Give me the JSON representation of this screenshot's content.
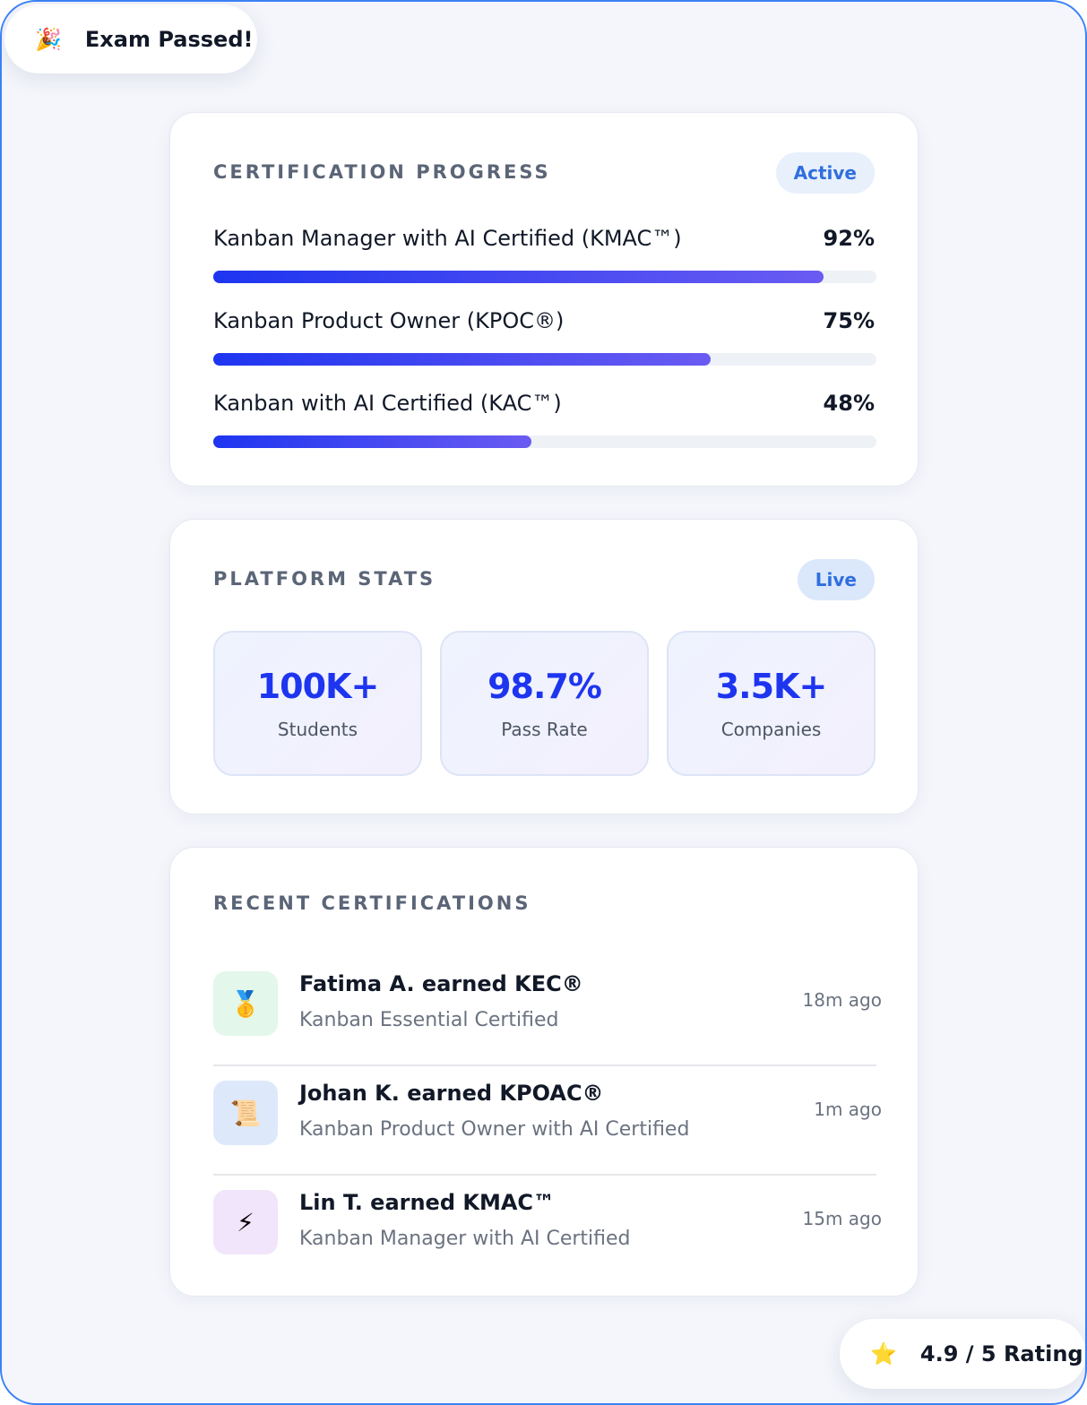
{
  "toast": {
    "icon": "🎉",
    "text": "Exam Passed!"
  },
  "progress": {
    "title": "CERTIFICATION PROGRESS",
    "badge": "Active",
    "xlim": [
      0,
      100
    ],
    "items": [
      {
        "label": "Kanban Manager with AI Certified (KMAC™)",
        "value": 92,
        "value_label": "92%"
      },
      {
        "label": "Kanban Product Owner (KPOC®)",
        "value": 75,
        "value_label": "75%"
      },
      {
        "label": "Kanban with AI Certified (KAC™)",
        "value": 48,
        "value_label": "48%"
      }
    ]
  },
  "stats": {
    "title": "PLATFORM STATS",
    "badge": "Live",
    "items": [
      {
        "value": "100K+",
        "label": "Students"
      },
      {
        "value": "98.7%",
        "label": "Pass Rate"
      },
      {
        "value": "3.5K+",
        "label": "Companies"
      }
    ]
  },
  "recent": {
    "title": "RECENT CERTIFICATIONS",
    "items": [
      {
        "icon": "🥇",
        "name": "Fatima A. earned KEC®",
        "course": "Kanban Essential Certified",
        "time": "18m ago",
        "bg": "#e3f7ea"
      },
      {
        "icon": "📜",
        "name": "Johan K. earned KPOAC®",
        "course": "Kanban Product Owner with AI Certified",
        "time": "1m ago",
        "bg": "#dde9fb"
      },
      {
        "icon": "⚡",
        "name": "Lin T. earned KMAC™",
        "course": "Kanban Manager with AI Certified",
        "time": "15m ago",
        "bg": "#f1e5fb"
      }
    ]
  },
  "rating": {
    "icon": "⭐",
    "text": "4.9 / 5 Rating"
  }
}
